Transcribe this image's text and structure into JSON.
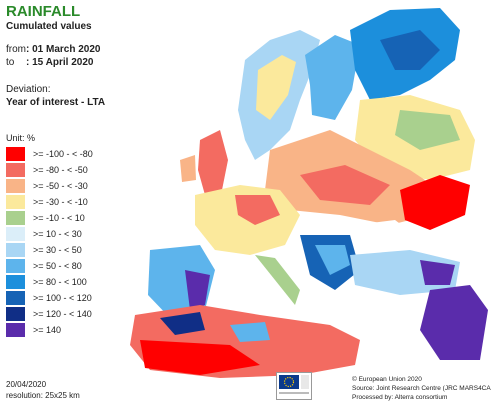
{
  "header": {
    "title": "RAINFALL",
    "subtitle": "Cumulated values",
    "from_label": "from",
    "from_value": ": 01 March 2020",
    "to_label": "to",
    "to_value": ": 15 April 2020",
    "deviation_label": "Deviation:",
    "deviation_value": "Year of interest - LTA"
  },
  "legend": {
    "unit": "Unit: %",
    "items": [
      {
        "label": ">= -100 - < -80",
        "color": "#ff0000"
      },
      {
        "label": ">= -80 - < -50",
        "color": "#f36b61"
      },
      {
        "label": ">= -50 - < -30",
        "color": "#f9b487"
      },
      {
        "label": ">= -30 - < -10",
        "color": "#fbe99c"
      },
      {
        "label": ">= -10 - < 10",
        "color": "#a9d08e"
      },
      {
        "label": ">= 10 - < 30",
        "color": "#dbeef9"
      },
      {
        "label": ">= 30 - < 50",
        "color": "#a9d6f4"
      },
      {
        "label": ">= 50 - < 80",
        "color": "#5db4ec"
      },
      {
        "label": ">= 80 - < 100",
        "color": "#1c8fdc"
      },
      {
        "label": ">= 100 - < 120",
        "color": "#1663b5"
      },
      {
        "label": ">= 120 - < 140",
        "color": "#102e86"
      },
      {
        "label": ">= 140",
        "color": "#5a2cab"
      }
    ]
  },
  "footer": {
    "date": "20/04/2020",
    "resolution": "resolution: 25x25 km",
    "copyright": "© European Union 2020",
    "source": "Source: Joint Research Centre (JRC MARS4CAST)",
    "processed": "Processed by: Alterra consortium"
  }
}
